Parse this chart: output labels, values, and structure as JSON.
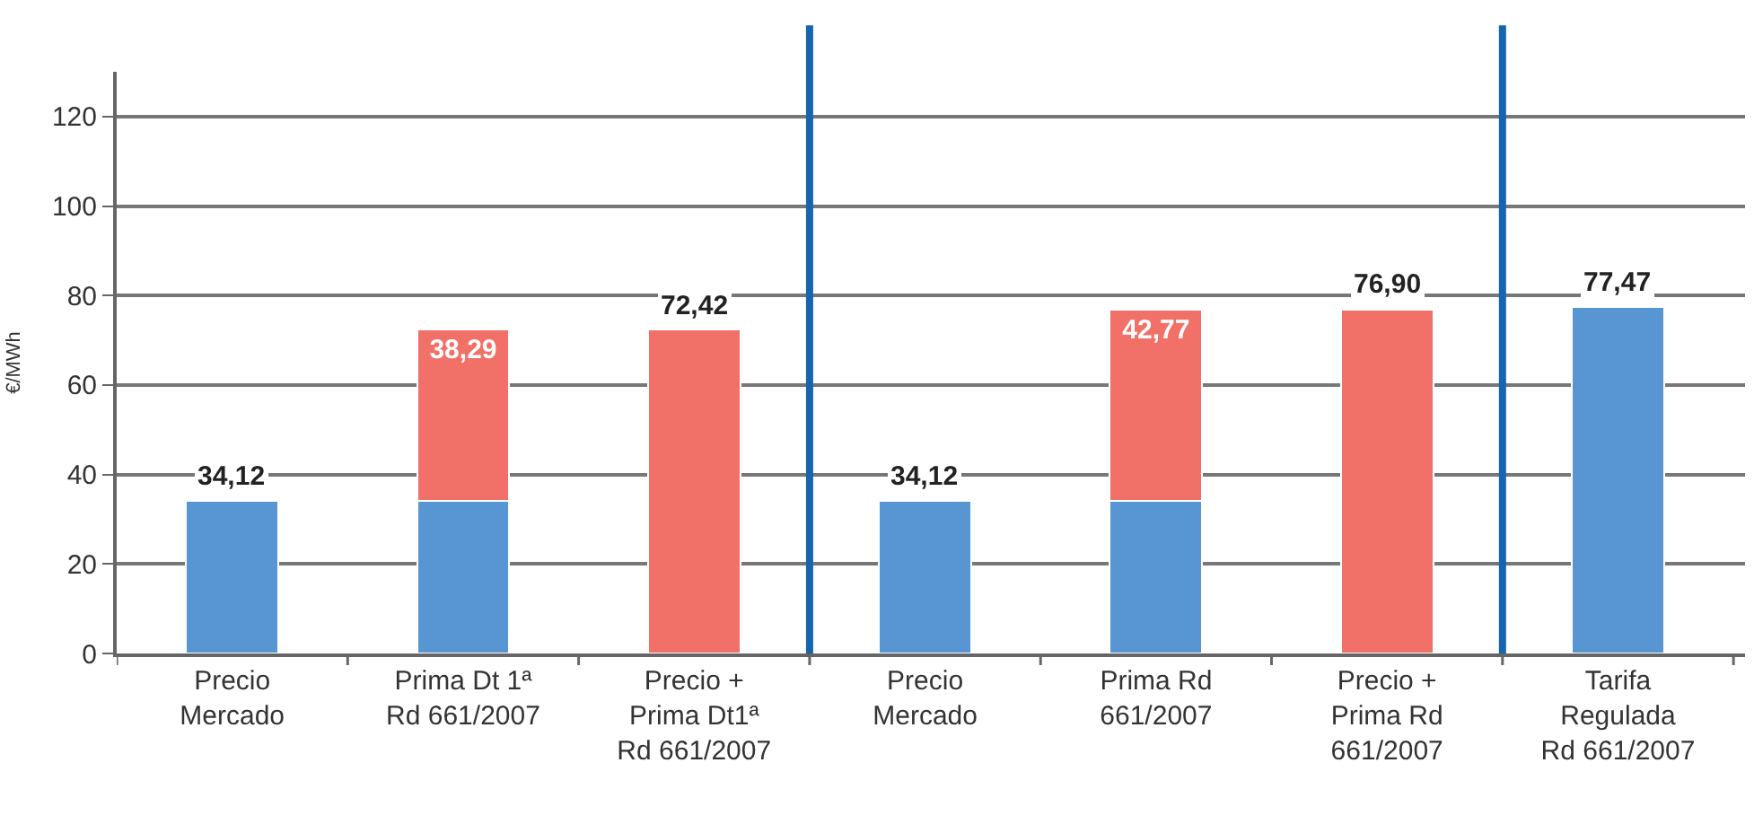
{
  "chart_data": {
    "type": "bar",
    "stacked": true,
    "ylabel": "€/MWh",
    "categories": [
      "Precio\nMercado",
      "Prima Dt 1ª\nRd 661/2007",
      "Precio +\nPrima Dt1ª\nRd 661/2007",
      "Precio\nMercado",
      "Prima Rd\n661/2007",
      "Precio +\nPrima Rd\n661/2007",
      "Tarifa\nRegulada\nRd 661/2007"
    ],
    "series": [
      {
        "color": "#5796d2",
        "values": [
          34.12,
          34.12,
          null,
          34.12,
          34.12,
          null,
          77.47
        ],
        "value_labels": [
          "34,12",
          null,
          null,
          "34,12",
          null,
          null,
          "77,47"
        ]
      },
      {
        "color": "#f17067",
        "values": [
          null,
          38.29,
          72.42,
          null,
          42.77,
          76.9,
          null
        ],
        "value_labels": [
          null,
          "38,29",
          "72,42",
          null,
          "42,77",
          "76,90",
          null
        ]
      }
    ],
    "ylim": [
      0,
      130
    ],
    "yticks": [
      0,
      20,
      40,
      60,
      80,
      100,
      120
    ],
    "grid": "y"
  }
}
